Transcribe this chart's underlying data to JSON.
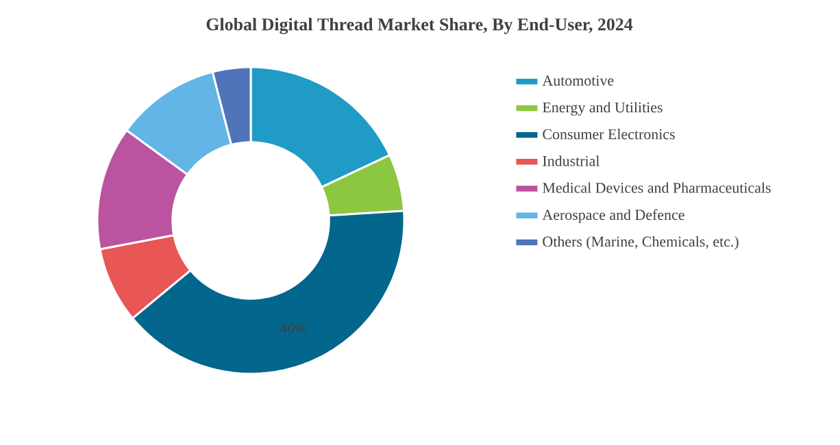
{
  "chart_data": {
    "type": "donut",
    "title": "Global Digital Thread Market Share, By End-User, 2024",
    "categories": [
      "Automotive",
      "Energy and Utilities",
      "Consumer Electronics",
      "Industrial",
      "Medical Devices and Pharmaceuticals",
      "Aerospace and Defence",
      "Others (Marine, Chemicals, etc.)"
    ],
    "values": [
      18,
      6,
      40,
      8,
      13,
      11,
      4
    ],
    "colors": [
      "#1f9bc6",
      "#8dc641",
      "#03668c",
      "#e85656",
      "#bc53a0",
      "#63b5e5",
      "#4f74b9"
    ],
    "value_labels": [
      null,
      null,
      "40%",
      null,
      null,
      null,
      null
    ],
    "legend": "right"
  }
}
